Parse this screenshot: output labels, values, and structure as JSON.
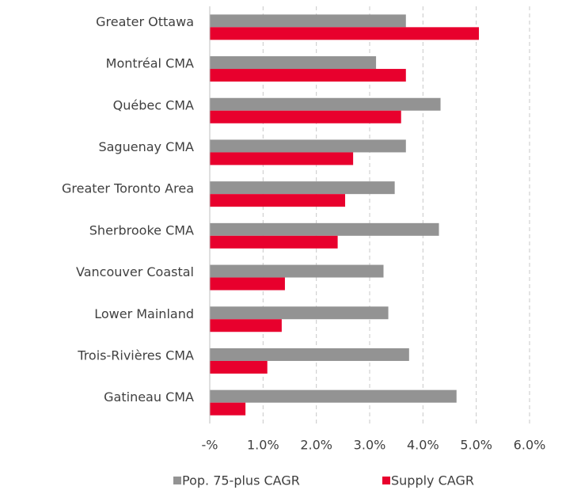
{
  "chart_data": {
    "type": "hbar",
    "categories": [
      "Greater Ottawa",
      "Montréal CMA",
      "Québec CMA",
      "Saguenay CMA",
      "Greater Toronto Area",
      "Sherbrooke CMA",
      "Vancouver Coastal",
      "Lower Mainland",
      "Trois-Rivières CMA",
      "Gatineau CMA"
    ],
    "series": [
      {
        "name": "Pop. 75-plus CAGR",
        "color": "#939393",
        "values": [
          3.68,
          3.12,
          4.33,
          3.68,
          3.47,
          4.3,
          3.26,
          3.35,
          3.74,
          4.63
        ]
      },
      {
        "name": "Supply CAGR",
        "color": "#e8002d",
        "values": [
          5.05,
          3.68,
          3.59,
          2.69,
          2.54,
          2.4,
          1.41,
          1.35,
          1.08,
          0.67
        ]
      }
    ],
    "xlim": [
      0,
      6.0
    ],
    "xticks": [
      {
        "value": 0,
        "label": "-%"
      },
      {
        "value": 1,
        "label": "1.0%"
      },
      {
        "value": 2,
        "label": "2.0%"
      },
      {
        "value": 3,
        "label": "3.0%"
      },
      {
        "value": 4,
        "label": "4.0%"
      },
      {
        "value": 5,
        "label": "5.0%"
      },
      {
        "value": 6,
        "label": "6.0%"
      }
    ],
    "grid": true,
    "legend": "bottom"
  }
}
